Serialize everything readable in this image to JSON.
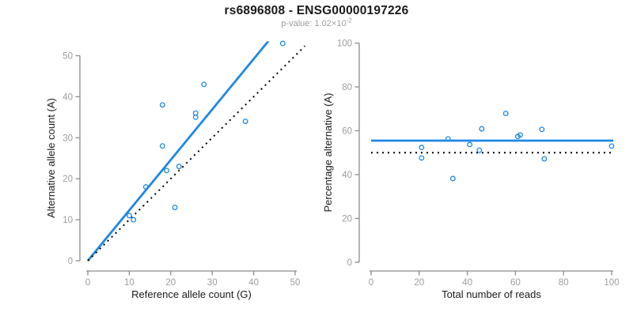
{
  "title": "rs6896808 - ENSG00000197226",
  "subtitle": {
    "base": "p-value: 1.02×10",
    "exponent": "-2"
  },
  "colors": {
    "accent_blue": "#1E88E5",
    "axis_gray": "#8c8c8c",
    "tick_label_gray": "#9c9c9c",
    "label_black": "#1a1a1a",
    "dotted_black": "#000000"
  },
  "chart_data": [
    {
      "type": "scatter",
      "panel": "left",
      "xlabel": "Reference allele count (G)",
      "ylabel": "Alternative allele count (A)",
      "xlim": [
        0,
        50
      ],
      "ylim": [
        0,
        50
      ],
      "xticks": [
        0,
        10,
        20,
        30,
        40,
        50
      ],
      "yticks": [
        0,
        10,
        20,
        30,
        40,
        50
      ],
      "grid": false,
      "legend": "none",
      "point_style": "open-circle",
      "points": [
        [
          47,
          53
        ],
        [
          28,
          43
        ],
        [
          18,
          38
        ],
        [
          26,
          36
        ],
        [
          26,
          35
        ],
        [
          38,
          34
        ],
        [
          18,
          28
        ],
        [
          22,
          23
        ],
        [
          19,
          22
        ],
        [
          14,
          18
        ],
        [
          21,
          13
        ],
        [
          10,
          11
        ],
        [
          11,
          10
        ]
      ],
      "lines": [
        {
          "name": "fit-line",
          "style": "solid",
          "color": "#1E88E5",
          "slope": 1.23,
          "intercept": 0
        },
        {
          "name": "identity-line",
          "style": "dotted",
          "color": "#000000",
          "slope": 1,
          "intercept": 0
        }
      ]
    },
    {
      "type": "scatter",
      "panel": "right",
      "xlabel": "Total number of reads",
      "ylabel": "Percentage alternative (A)",
      "xlim": [
        0,
        100
      ],
      "ylim": [
        0,
        100
      ],
      "xticks": [
        0,
        20,
        40,
        60,
        80,
        100
      ],
      "yticks": [
        0,
        20,
        40,
        60,
        80,
        100
      ],
      "grid": false,
      "legend": "none",
      "point_style": "open-circle",
      "points": [
        [
          21,
          52.4
        ],
        [
          21,
          47.6
        ],
        [
          32,
          56.3
        ],
        [
          34,
          38.2
        ],
        [
          41,
          53.7
        ],
        [
          45,
          51.1
        ],
        [
          46,
          60.9
        ],
        [
          56,
          67.9
        ],
        [
          61,
          57.4
        ],
        [
          62,
          58.1
        ],
        [
          71,
          60.6
        ],
        [
          72,
          47.2
        ],
        [
          100,
          53
        ]
      ],
      "lines": [
        {
          "name": "mean-percentage-line",
          "style": "solid",
          "color": "#1E88E5",
          "slope": 0,
          "intercept": 55.5
        },
        {
          "name": "expected-50-line",
          "style": "dotted",
          "color": "#000000",
          "slope": 0,
          "intercept": 50
        }
      ]
    }
  ]
}
